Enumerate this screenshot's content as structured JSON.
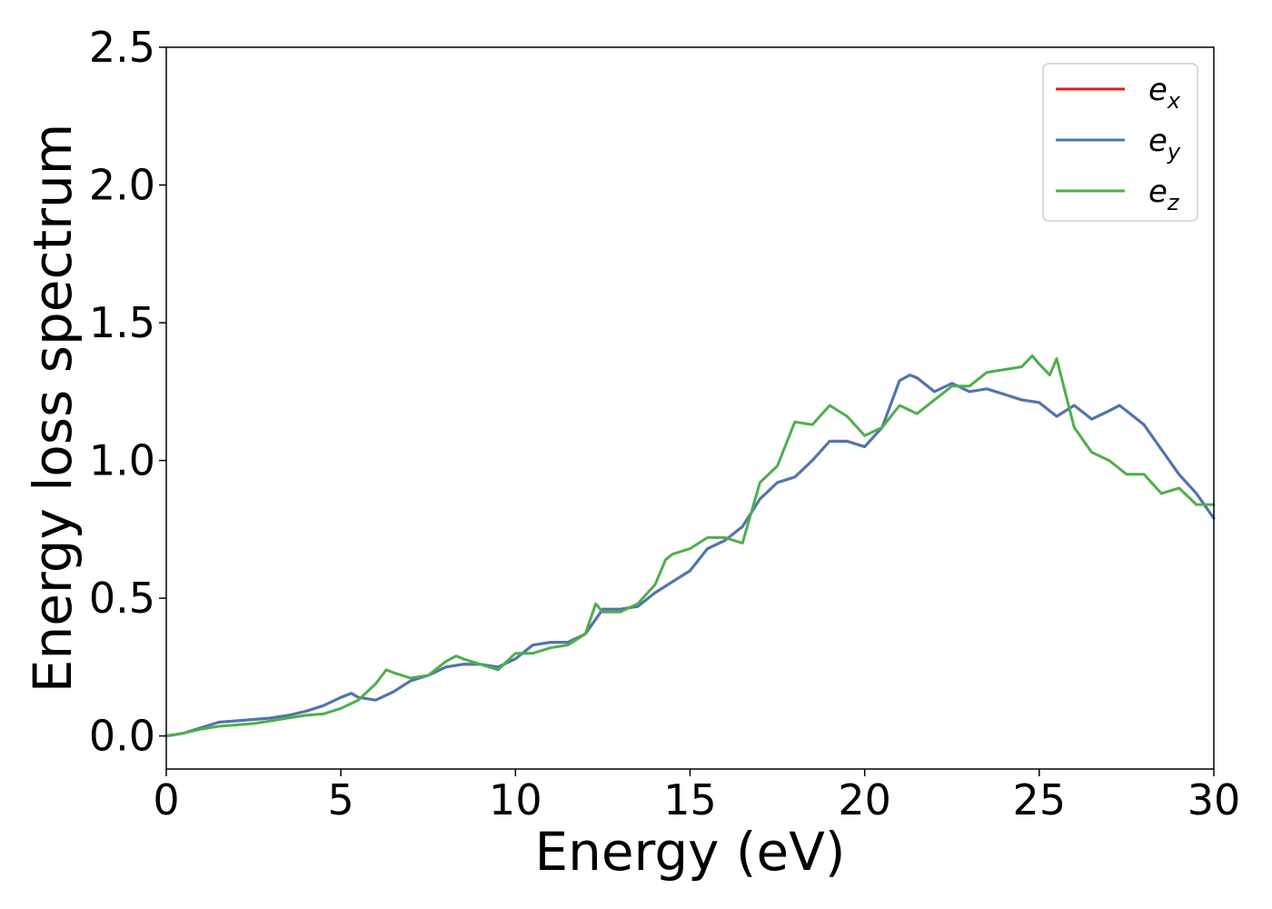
{
  "chart_data": {
    "type": "line",
    "title": "",
    "xlabel": "Energy (eV)",
    "ylabel": "Energy loss spectrum",
    "xlim": [
      0,
      30
    ],
    "ylim": [
      -0.12,
      2.5
    ],
    "xticks": [
      0,
      5,
      10,
      15,
      20,
      25,
      30
    ],
    "xtick_labels": [
      "0",
      "5",
      "10",
      "15",
      "20",
      "25",
      "30"
    ],
    "yticks": [
      0.0,
      0.5,
      1.0,
      1.5,
      2.0,
      2.5
    ],
    "ytick_labels": [
      "0.0",
      "0.5",
      "1.0",
      "1.5",
      "2.0",
      "2.5"
    ],
    "grid": false,
    "legend_position": "top-right",
    "series": [
      {
        "name": "e_x",
        "legend_base": "e",
        "legend_sub": "x",
        "color": "#e41a1c",
        "x": [
          0,
          0.5,
          1,
          1.5,
          2,
          2.5,
          3,
          3.5,
          4,
          4.5,
          5,
          5.3,
          5.5,
          6,
          6.5,
          7,
          7.5,
          8,
          8.5,
          9,
          9.5,
          10,
          10.5,
          11,
          11.5,
          12,
          12.5,
          13,
          13.5,
          14,
          14.5,
          15,
          15.5,
          16,
          16.5,
          17,
          17.5,
          18,
          18.5,
          19,
          19.5,
          20,
          20.5,
          21,
          21.3,
          21.5,
          22,
          22.5,
          23,
          23.5,
          24,
          24.5,
          25,
          25.5,
          26,
          26.5,
          27,
          27.3,
          27.5,
          28,
          28.5,
          29,
          29.5,
          30
        ],
        "y": [
          0.0,
          0.01,
          0.03,
          0.05,
          0.055,
          0.06,
          0.065,
          0.075,
          0.09,
          0.11,
          0.14,
          0.155,
          0.14,
          0.13,
          0.16,
          0.2,
          0.22,
          0.25,
          0.26,
          0.26,
          0.25,
          0.28,
          0.33,
          0.34,
          0.34,
          0.37,
          0.46,
          0.46,
          0.47,
          0.52,
          0.56,
          0.6,
          0.68,
          0.71,
          0.76,
          0.86,
          0.92,
          0.94,
          1.0,
          1.07,
          1.07,
          1.05,
          1.12,
          1.29,
          1.31,
          1.3,
          1.25,
          1.28,
          1.25,
          1.26,
          1.24,
          1.22,
          1.21,
          1.16,
          1.2,
          1.15,
          1.18,
          1.2,
          1.18,
          1.13,
          1.04,
          0.95,
          0.88,
          0.79
        ]
      },
      {
        "name": "e_y",
        "legend_base": "e",
        "legend_sub": "y",
        "color": "#4a77b4",
        "x": [
          0,
          0.5,
          1,
          1.5,
          2,
          2.5,
          3,
          3.5,
          4,
          4.5,
          5,
          5.3,
          5.5,
          6,
          6.5,
          7,
          7.5,
          8,
          8.5,
          9,
          9.5,
          10,
          10.5,
          11,
          11.5,
          12,
          12.5,
          13,
          13.5,
          14,
          14.5,
          15,
          15.5,
          16,
          16.5,
          17,
          17.5,
          18,
          18.5,
          19,
          19.5,
          20,
          20.5,
          21,
          21.3,
          21.5,
          22,
          22.5,
          23,
          23.5,
          24,
          24.5,
          25,
          25.5,
          26,
          26.5,
          27,
          27.3,
          27.5,
          28,
          28.5,
          29,
          29.5,
          30
        ],
        "y": [
          0.0,
          0.01,
          0.03,
          0.05,
          0.055,
          0.06,
          0.065,
          0.075,
          0.09,
          0.11,
          0.14,
          0.155,
          0.14,
          0.13,
          0.16,
          0.2,
          0.22,
          0.25,
          0.26,
          0.26,
          0.25,
          0.28,
          0.33,
          0.34,
          0.34,
          0.37,
          0.46,
          0.46,
          0.47,
          0.52,
          0.56,
          0.6,
          0.68,
          0.71,
          0.76,
          0.86,
          0.92,
          0.94,
          1.0,
          1.07,
          1.07,
          1.05,
          1.12,
          1.29,
          1.31,
          1.3,
          1.25,
          1.28,
          1.25,
          1.26,
          1.24,
          1.22,
          1.21,
          1.16,
          1.2,
          1.15,
          1.18,
          1.2,
          1.18,
          1.13,
          1.04,
          0.95,
          0.88,
          0.79
        ]
      },
      {
        "name": "e_z",
        "legend_base": "e",
        "legend_sub": "z",
        "color": "#4daf4a",
        "x": [
          0,
          0.5,
          1,
          1.5,
          2,
          2.5,
          3,
          3.5,
          4,
          4.5,
          5,
          5.5,
          6,
          6.3,
          6.5,
          7,
          7.5,
          8,
          8.3,
          8.5,
          9,
          9.5,
          10,
          10.5,
          11,
          11.5,
          12,
          12.3,
          12.5,
          13,
          13.5,
          14,
          14.3,
          14.5,
          15,
          15.5,
          16,
          16.5,
          17,
          17.5,
          18,
          18.5,
          19,
          19.5,
          20,
          20.5,
          21,
          21.5,
          22,
          22.5,
          23,
          23.5,
          24,
          24.5,
          24.8,
          25,
          25.3,
          25.5,
          26,
          26.5,
          27,
          27.5,
          28,
          28.5,
          29,
          29.5,
          30
        ],
        "y": [
          0.0,
          0.01,
          0.025,
          0.035,
          0.04,
          0.045,
          0.055,
          0.065,
          0.075,
          0.08,
          0.1,
          0.13,
          0.19,
          0.24,
          0.23,
          0.21,
          0.22,
          0.27,
          0.29,
          0.28,
          0.26,
          0.24,
          0.3,
          0.3,
          0.32,
          0.33,
          0.37,
          0.48,
          0.45,
          0.45,
          0.48,
          0.55,
          0.64,
          0.66,
          0.68,
          0.72,
          0.72,
          0.7,
          0.92,
          0.98,
          1.14,
          1.13,
          1.2,
          1.16,
          1.09,
          1.12,
          1.2,
          1.17,
          1.22,
          1.27,
          1.27,
          1.32,
          1.33,
          1.34,
          1.38,
          1.35,
          1.31,
          1.37,
          1.12,
          1.03,
          1.0,
          0.95,
          0.95,
          0.88,
          0.9,
          0.84,
          0.84
        ]
      }
    ]
  }
}
